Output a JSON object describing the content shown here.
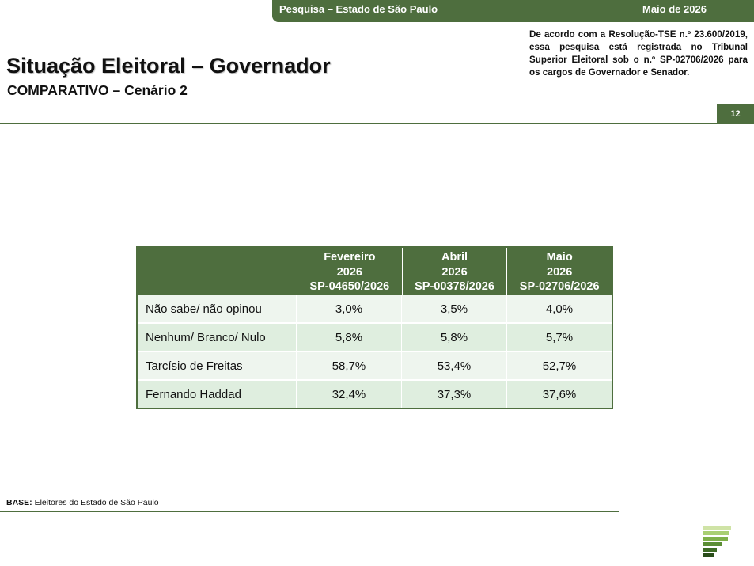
{
  "banner": {
    "survey": "Pesquisa – Estado de São Paulo",
    "date": "Maio de 2026"
  },
  "legal_note": "De acordo com a Resolução-TSE n.º 23.600/2019, essa pesquisa está registrada no Tribunal Superior Eleitoral sob o n.º SP-02706/2026 para os cargos de Governador e Senador.",
  "title": "Situação Eleitoral – Governador",
  "subtitle": "COMPARATIVO – Cenário 2",
  "page_number": "12",
  "table": {
    "columns": [
      {
        "line1": "Fevereiro",
        "line2": "2026",
        "line3": "SP-04650/2026"
      },
      {
        "line1": "Abril",
        "line2": "2026",
        "line3": "SP-00378/2026"
      },
      {
        "line1": "Maio",
        "line2": "2026",
        "line3": "SP-02706/2026"
      }
    ],
    "rows": [
      {
        "label": "Não sabe/ não opinou",
        "values": [
          "3,0%",
          "3,5%",
          "4,0%"
        ]
      },
      {
        "label": "Nenhum/ Branco/ Nulo",
        "values": [
          "5,8%",
          "5,8%",
          "5,7%"
        ]
      },
      {
        "label": "Tarcísio de Freitas",
        "values": [
          "58,7%",
          "53,4%",
          "52,7%"
        ]
      },
      {
        "label": "Fernando Haddad",
        "values": [
          "32,4%",
          "37,3%",
          "37,6%"
        ]
      }
    ]
  },
  "base": {
    "label": "BASE:",
    "text": " Eleitores do Estado de São Paulo"
  },
  "colors": {
    "brand_green": "#4e6e3e",
    "row_light": "#eef5ee",
    "row_dark": "#dfeedf"
  },
  "logo_icon": "stacked-bars-logo-icon"
}
